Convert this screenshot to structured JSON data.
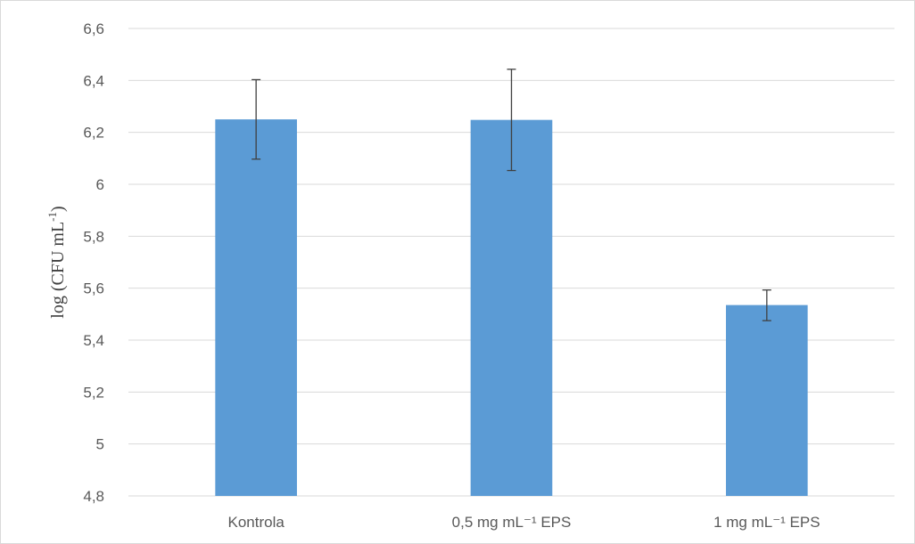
{
  "chart_data": {
    "type": "bar",
    "categories": [
      "Kontrola",
      "0,5 mg mL⁻¹ EPS",
      "1 mg mL⁻¹ EPS"
    ],
    "values": [
      6.25,
      6.248,
      5.535
    ],
    "error_low": [
      6.097,
      6.053,
      5.475
    ],
    "error_high": [
      6.403,
      6.443,
      5.593
    ],
    "title": "",
    "xlabel": "",
    "ylabel": "log (CFU mL-1)",
    "ylabel_base": "log (CFU mL",
    "ylabel_sup": "-1",
    "ylabel_close": ")",
    "ylim": [
      4.8,
      6.6
    ],
    "yticks": [
      4.8,
      5.0,
      5.2,
      5.4,
      5.6,
      5.8,
      6.0,
      6.2,
      6.4,
      6.6
    ],
    "ytick_labels": [
      "4,8",
      "5",
      "5,2",
      "5,4",
      "5,6",
      "5,8",
      "6",
      "6,2",
      "6,4",
      "6,6"
    ],
    "grid": true,
    "legend": "none",
    "bar_color": "#5b9bd5",
    "error_bar_color": "#404040",
    "grid_color": "#d9d9d9"
  }
}
